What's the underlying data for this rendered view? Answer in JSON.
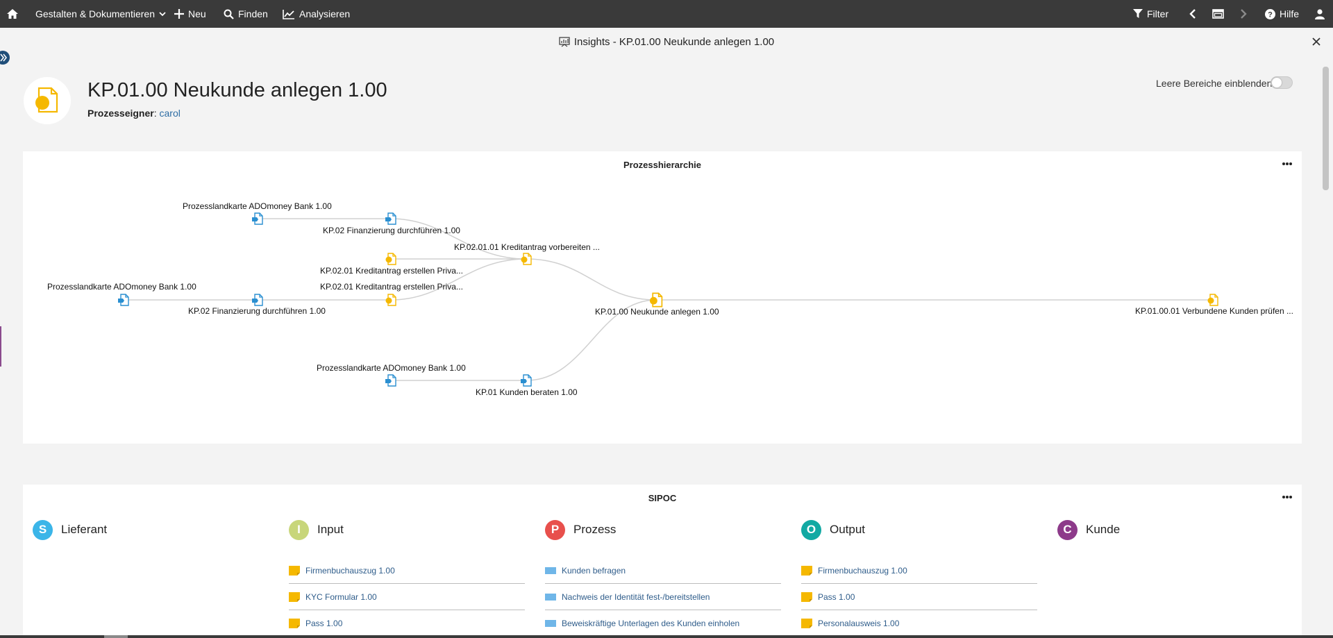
{
  "topbar": {
    "design": "Gestalten & Dokumentieren",
    "new": "Neu",
    "find": "Finden",
    "analyze": "Analysieren",
    "filter": "Filter",
    "help": "Hilfe"
  },
  "window": {
    "title": "Insights - KP.01.00 Neukunde anlegen 1.00"
  },
  "header": {
    "title": "KP.01.00 Neukunde anlegen 1.00",
    "owner_label": "Prozesseigner",
    "owner_sep": ": ",
    "owner_name": "carol",
    "toggle_label": "Leere Bereiche einblenden",
    "toggle_on": false
  },
  "hierarchy": {
    "title": "Prozesshierarchie",
    "nodes": [
      {
        "label": "Prozesslandkarte ADOmoney Bank 1.00",
        "kind": "map"
      },
      {
        "label": "KP.02 Finanzierung durchführen 1.00",
        "kind": "map"
      },
      {
        "label": "KP.02.01.01 Kreditantrag vorbereiten ...",
        "kind": "process"
      },
      {
        "label": "KP.02.01 Kreditantrag erstellen Priva...",
        "kind": "process"
      },
      {
        "label": "KP.02.01 Kreditantrag erstellen Priva...",
        "kind": "process"
      },
      {
        "label": "Prozesslandkarte ADOmoney Bank 1.00",
        "kind": "map"
      },
      {
        "label": "KP.02 Finanzierung durchführen 1.00",
        "kind": "map"
      },
      {
        "label": "KP.01.00 Neukunde anlegen 1.00",
        "kind": "process"
      },
      {
        "label": "KP.01.00.01 Verbundene Kunden prüfen ...",
        "kind": "process"
      },
      {
        "label": "Prozesslandkarte ADOmoney Bank 1.00",
        "kind": "map"
      },
      {
        "label": "KP.01 Kunden beraten 1.00",
        "kind": "map"
      }
    ]
  },
  "sipoc": {
    "title": "SIPOC",
    "columns": [
      {
        "letter": "S",
        "label": "Lieferant",
        "color": "#3bb5e8",
        "items": []
      },
      {
        "letter": "I",
        "label": "Input",
        "color": "#c8d67a",
        "items": [
          {
            "label": "Firmenbuchauszug 1.00",
            "icon": "document-icon"
          },
          {
            "label": "KYC Formular 1.00",
            "icon": "document-icon"
          },
          {
            "label": "Pass 1.00",
            "icon": "document-icon"
          }
        ]
      },
      {
        "letter": "P",
        "label": "Prozess",
        "color": "#e8504c",
        "items": [
          {
            "label": "Kunden befragen",
            "icon": "task-icon"
          },
          {
            "label": "Nachweis der Identität fest-/bereitstellen",
            "icon": "task-icon"
          },
          {
            "label": "Beweiskräftige Unterlagen des Kunden einholen",
            "icon": "task-icon"
          }
        ]
      },
      {
        "letter": "O",
        "label": "Output",
        "color": "#12a9a3",
        "items": [
          {
            "label": "Firmenbuchauszug 1.00",
            "icon": "document-icon"
          },
          {
            "label": "Pass 1.00",
            "icon": "document-icon"
          },
          {
            "label": "Personalausweis 1.00",
            "icon": "document-icon"
          }
        ]
      },
      {
        "letter": "C",
        "label": "Kunde",
        "color": "#8d3a8a",
        "items": []
      }
    ]
  },
  "colors": {
    "topbar": "#3a3a3a",
    "link": "#2e6da4",
    "process": "#f5b800",
    "map": "#2a8fd1"
  }
}
